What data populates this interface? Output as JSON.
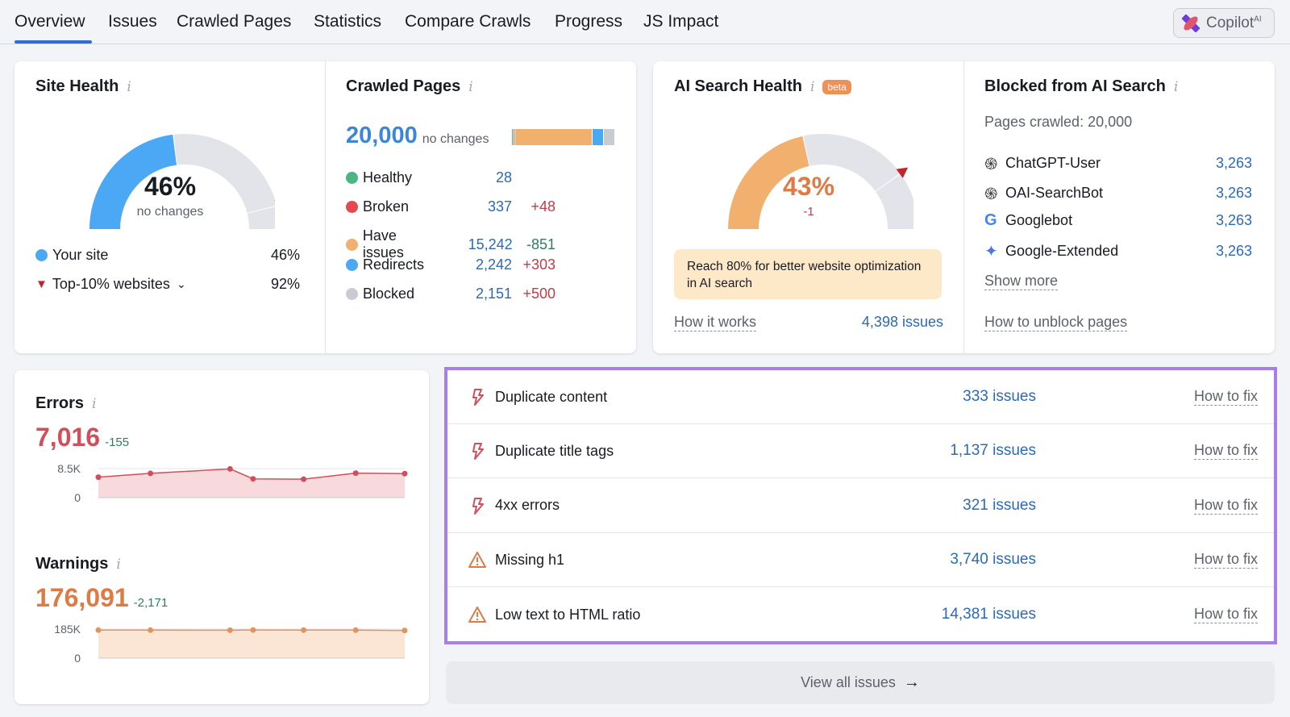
{
  "nav": {
    "tabs": [
      "Overview",
      "Issues",
      "Crawled Pages",
      "Statistics",
      "Compare Crawls",
      "Progress",
      "JS Impact"
    ],
    "active": "Overview",
    "copilot_label": "Copilot",
    "copilot_sup": "AI"
  },
  "site_health": {
    "title": "Site Health",
    "value_pct": 46,
    "value_label": "46%",
    "change": "no changes",
    "benchmark_pct": 92,
    "legend": [
      {
        "label": "Your site",
        "value": "46%",
        "color": "#4aa8f4"
      },
      {
        "label": "Top-10% websites",
        "value": "92%",
        "color": "#c1262f"
      }
    ]
  },
  "crawled_pages": {
    "title": "Crawled Pages",
    "total": "20,000",
    "change": "no changes",
    "rows": [
      {
        "label": "Healthy",
        "value": "28",
        "delta": "",
        "color": "#48b784",
        "count": 28
      },
      {
        "label": "Broken",
        "value": "337",
        "delta": "+48",
        "color": "#e5484d",
        "count": 337
      },
      {
        "label": "Have issues",
        "value": "15,242",
        "delta": "-851",
        "color": "#f2b06e",
        "count": 15242
      },
      {
        "label": "Redirects",
        "value": "2,242",
        "delta": "+303",
        "color": "#4aa8f4",
        "count": 2242
      },
      {
        "label": "Blocked",
        "value": "2,151",
        "delta": "+500",
        "color": "#c8cbd2",
        "count": 2151
      }
    ]
  },
  "ai_health": {
    "title": "AI Search Health",
    "badge": "beta",
    "value_pct": 43,
    "value_label": "43%",
    "change": "-1",
    "benchmark_pct": 80,
    "note": "Reach 80% for better website optimization in AI search",
    "how_it_works": "How it works",
    "issues_link": "4,398 issues"
  },
  "blocked_ai": {
    "title": "Blocked from AI Search",
    "pages_crawled": "Pages crawled: 20,000",
    "bots": [
      {
        "name": "ChatGPT-User",
        "value": "3,263",
        "icon": "openai-icon"
      },
      {
        "name": "OAI-SearchBot",
        "value": "3,263",
        "icon": "openai-icon"
      },
      {
        "name": "Googlebot",
        "value": "3,263",
        "icon": "google-icon"
      },
      {
        "name": "Google-Extended",
        "value": "3,263",
        "icon": "gemini-icon"
      }
    ],
    "show_more": "Show more",
    "unblock_link": "How to unblock pages"
  },
  "chart_data": [
    {
      "type": "area",
      "title": "Errors",
      "total": "7,016",
      "delta": "-155",
      "ylim": [
        0,
        8500
      ],
      "yticks": [
        "8.5K",
        "0"
      ],
      "values": [
        6000,
        7100,
        8400,
        5500,
        5400,
        7171,
        7016
      ],
      "color": "#d04f5b",
      "fill": "#f8d9dc"
    },
    {
      "type": "area",
      "title": "Warnings",
      "total": "176,091",
      "delta": "-2,171",
      "ylim": [
        0,
        185000
      ],
      "yticks": [
        "185K",
        "0"
      ],
      "values": [
        178500,
        178300,
        178100,
        179200,
        178600,
        178262,
        176091
      ],
      "color": "#e2945d",
      "fill": "#fbe5d4"
    }
  ],
  "issues": [
    {
      "name": "Duplicate content",
      "count": "333 issues",
      "type": "error",
      "fix": "How to fix"
    },
    {
      "name": "Duplicate title tags",
      "count": "1,137 issues",
      "type": "error",
      "fix": "How to fix"
    },
    {
      "name": "4xx errors",
      "count": "321 issues",
      "type": "error",
      "fix": "How to fix"
    },
    {
      "name": "Missing h1",
      "count": "3,740 issues",
      "type": "warning",
      "fix": "How to fix"
    },
    {
      "name": "Low text to HTML ratio",
      "count": "14,381 issues",
      "type": "warning",
      "fix": "How to fix"
    }
  ],
  "view_all": "View all issues",
  "colors": {
    "accent": "#2a6ab8",
    "highlight_border": "#a87fe8",
    "error": "#d04f5b",
    "warning": "#e07a45"
  }
}
